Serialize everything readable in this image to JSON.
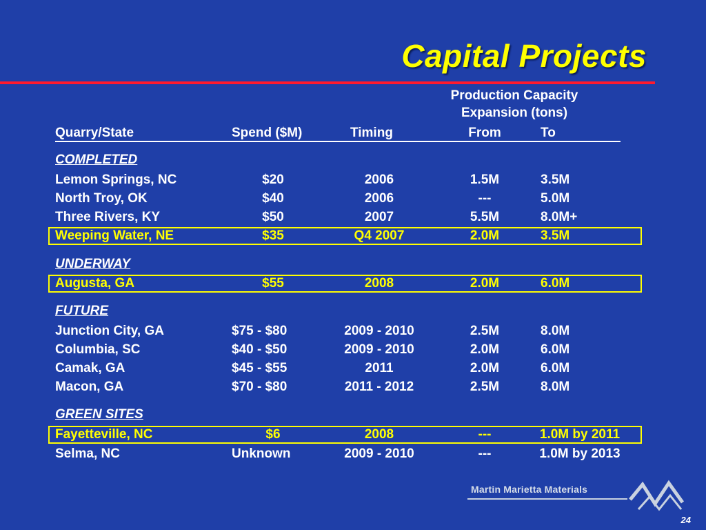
{
  "title": "Capital Projects",
  "capacity_header": {
    "line1": "Production Capacity",
    "line2": "Expansion (tons)"
  },
  "columns": {
    "quarry": "Quarry/State",
    "spend": "Spend ($M)",
    "timing": "Timing",
    "from": "From",
    "to": "To"
  },
  "sections": {
    "completed": "COMPLETED",
    "underway": "UNDERWAY",
    "future": "FUTURE",
    "green_sites": "GREEN SITES"
  },
  "rows": [
    {
      "quarry": "Lemon Springs, NC",
      "spend": "$20",
      "timing": "2006",
      "from": "1.5M",
      "to": "3.5M"
    },
    {
      "quarry": "North Troy, OK",
      "spend": "$40",
      "timing": "2006",
      "from": "---",
      "to": "5.0M"
    },
    {
      "quarry": "Three Rivers, KY",
      "spend": "$50",
      "timing": "2007",
      "from": "5.5M",
      "to": "8.0M+"
    },
    {
      "quarry": "Weeping Water, NE",
      "spend": "$35",
      "timing": "Q4 2007",
      "from": "2.0M",
      "to": "3.5M",
      "highlight": true
    },
    {
      "quarry": "Augusta, GA",
      "spend": "$55",
      "timing": "2008",
      "from": "2.0M",
      "to": "6.0M",
      "highlight": true
    },
    {
      "quarry": "Junction City, GA",
      "spend": "$75 - $80",
      "timing": "2009 - 2010",
      "from": "2.5M",
      "to": "8.0M"
    },
    {
      "quarry": "Columbia, SC",
      "spend": "$40 - $50",
      "timing": "2009 - 2010",
      "from": "2.0M",
      "to": "6.0M"
    },
    {
      "quarry": "Camak, GA",
      "spend": "$45 - $55",
      "timing": "2011",
      "from": "2.0M",
      "to": "6.0M"
    },
    {
      "quarry": "Macon, GA",
      "spend": "$70 - $80",
      "timing": "2011 - 2012",
      "from": "2.5M",
      "to": "8.0M"
    },
    {
      "quarry": "Fayetteville, NC",
      "spend": "$6",
      "timing": "2008",
      "from": "---",
      "to": "1.0M by 2011",
      "highlight": true
    },
    {
      "quarry": "Selma, NC",
      "spend": "Unknown",
      "timing": "2009 - 2010",
      "from": "---",
      "to": "1.0M by 2013"
    }
  ],
  "logo": {
    "text": "Martin Marietta Materials",
    "icon": "mountain-peaks-icon"
  },
  "page_number": "24",
  "colors": {
    "background": "#1f3fa8",
    "title": "#ffff00",
    "rule": "#ff1a2e",
    "highlight": "#ffff00"
  }
}
